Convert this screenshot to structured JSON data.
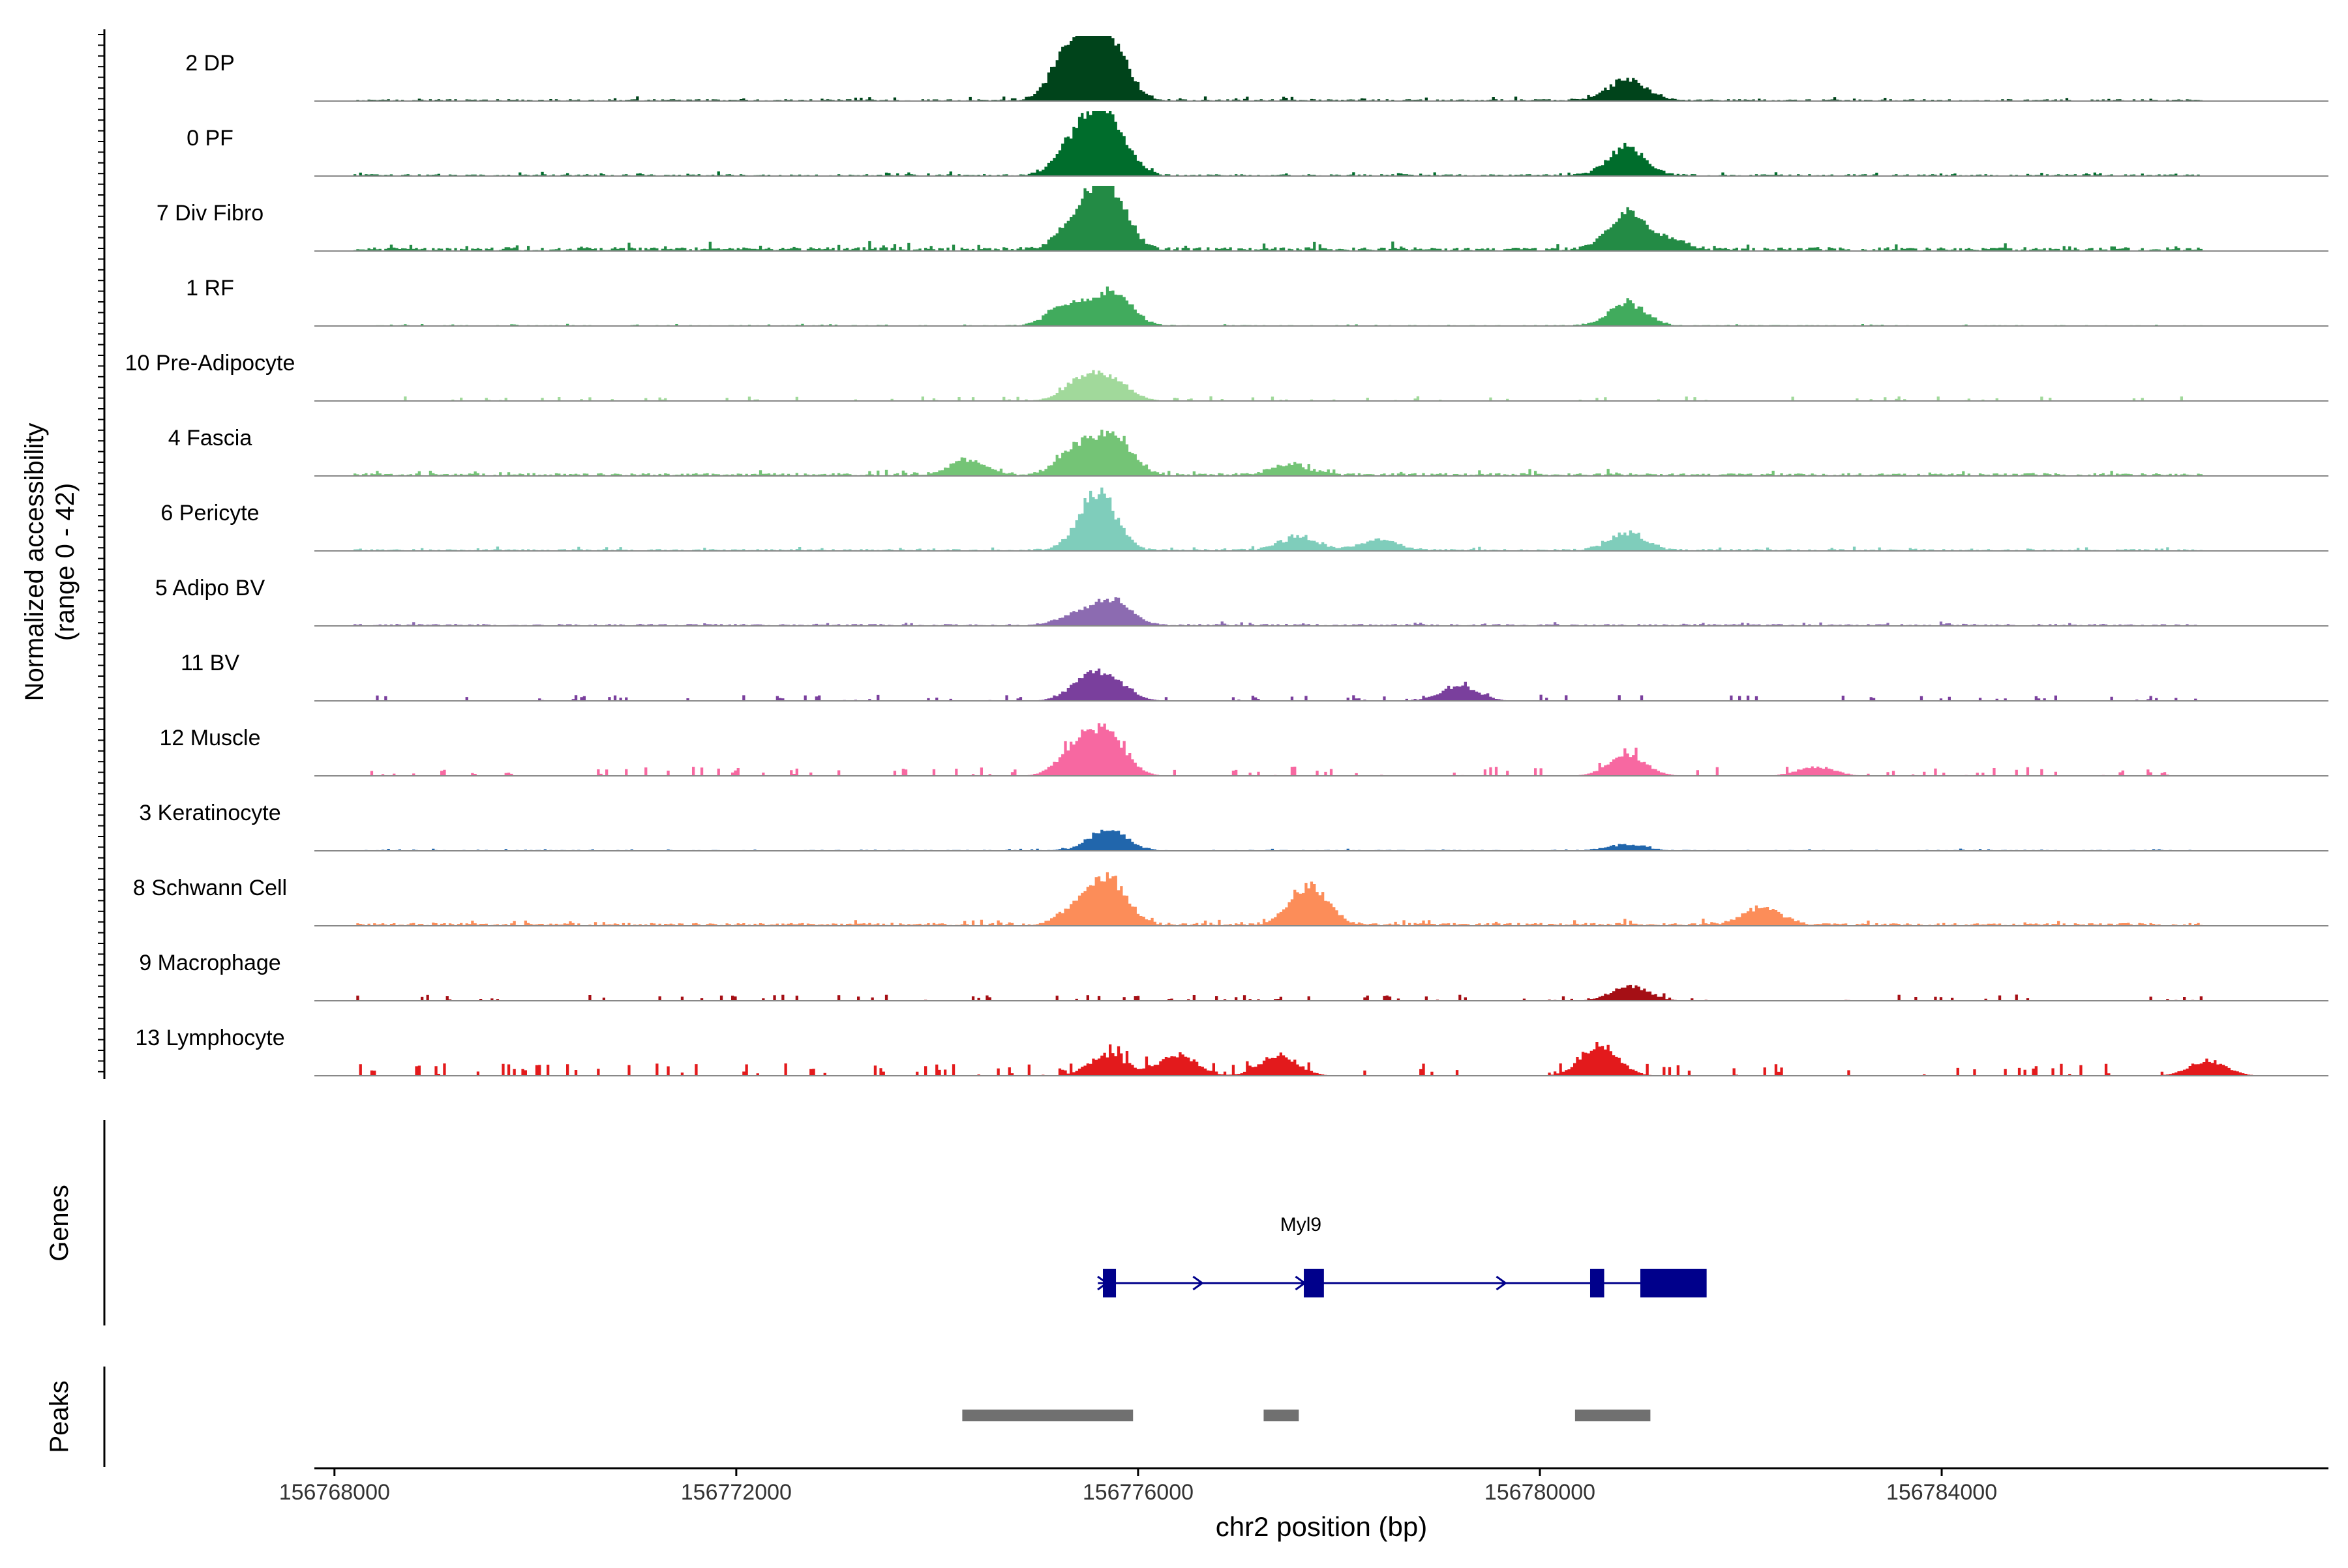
{
  "chart_data": {
    "type": "area",
    "ylabel": "Normalized accessibility",
    "ylabel2": "(range 0 - 42)",
    "xlabel": "chr2 position (bp)",
    "ylim": [
      0,
      42
    ],
    "xlim": [
      156767800,
      156787850
    ],
    "x_ticks": [
      156768000,
      156772000,
      156776000,
      156780000,
      156784000
    ],
    "x_tick_labels": [
      "156768000",
      "156772000",
      "156776000",
      "156780000",
      "156784000"
    ],
    "panels": {
      "genes_label": "Genes",
      "peaks_label": "Peaks"
    },
    "tracks": [
      {
        "name": "2 DP",
        "color": "#00441b",
        "peaks": [
          [
            156775350,
            38
          ],
          [
            156775700,
            40
          ],
          [
            156780870,
            14
          ]
        ],
        "noise": 2,
        "sparse": false
      },
      {
        "name": "0 PF",
        "color": "#006d2c",
        "peaks": [
          [
            156775400,
            24
          ],
          [
            156775700,
            38
          ],
          [
            156780870,
            18
          ]
        ],
        "noise": 2,
        "sparse": false
      },
      {
        "name": "7 Div Fibro",
        "color": "#238b45",
        "peaks": [
          [
            156775400,
            18
          ],
          [
            156775700,
            40
          ],
          [
            156780870,
            25
          ],
          [
            156781300,
            6
          ]
        ],
        "noise": 4,
        "sparse": false
      },
      {
        "name": "1 RF",
        "color": "#41ab5d",
        "peaks": [
          [
            156775300,
            14
          ],
          [
            156775750,
            22
          ],
          [
            156780870,
            15
          ]
        ],
        "noise": 1,
        "sparse": false
      },
      {
        "name": "10 Pre-Adipocyte",
        "color": "#a1d99b",
        "peaks": [
          [
            156775450,
            14
          ],
          [
            156775750,
            12
          ]
        ],
        "noise": 3,
        "sparse": true
      },
      {
        "name": "4 Fascia",
        "color": "#74c476",
        "peaks": [
          [
            156774300,
            10
          ],
          [
            156775400,
            18
          ],
          [
            156775750,
            24
          ],
          [
            156777520,
            7
          ]
        ],
        "noise": 3,
        "sparse": false
      },
      {
        "name": "6 Pericyte",
        "color": "#7fcdbb",
        "peaks": [
          [
            156775600,
            38
          ],
          [
            156777600,
            9
          ],
          [
            156778400,
            7
          ],
          [
            156780870,
            11
          ]
        ],
        "noise": 2,
        "sparse": false
      },
      {
        "name": "5 Adipo BV",
        "color": "#8c6bb1",
        "peaks": [
          [
            156775400,
            7
          ],
          [
            156775750,
            16
          ]
        ],
        "noise": 2,
        "sparse": false
      },
      {
        "name": "11 BV",
        "color": "#7a3f9d",
        "peaks": [
          [
            156775500,
            14
          ],
          [
            156775750,
            10
          ],
          [
            156779200,
            10
          ]
        ],
        "noise": 4,
        "sparse": true
      },
      {
        "name": "12 Muscle",
        "color": "#f768a1",
        "peaks": [
          [
            156775400,
            18
          ],
          [
            156775700,
            26
          ],
          [
            156780870,
            14
          ],
          [
            156782750,
            6
          ]
        ],
        "noise": 6,
        "sparse": true
      },
      {
        "name": "3 Keratinocyte",
        "color": "#2166ac",
        "peaks": [
          [
            156775700,
            14
          ],
          [
            156780870,
            4
          ]
        ],
        "noise": 1,
        "sparse": false
      },
      {
        "name": "8 Schwann Cell",
        "color": "#fc8d59",
        "peaks": [
          [
            156775400,
            10
          ],
          [
            156775700,
            30
          ],
          [
            156777700,
            26
          ],
          [
            156782220,
            12
          ]
        ],
        "noise": 3,
        "sparse": false
      },
      {
        "name": "9 Macrophage",
        "color": "#a50f15",
        "peaks": [
          [
            156780900,
            10
          ]
        ],
        "noise": 4,
        "sparse": true
      },
      {
        "name": "13 Lymphocyte",
        "color": "#e31a1c",
        "peaks": [
          [
            156775700,
            14
          ],
          [
            156776400,
            14
          ],
          [
            156777400,
            14
          ],
          [
            156780600,
            20
          ],
          [
            156786650,
            10
          ]
        ],
        "noise": 8,
        "sparse": true
      }
    ],
    "gene": {
      "name": "Myl9",
      "color": "#00008b",
      "start": 156775600,
      "end": 156781650,
      "exons": [
        [
          156775650,
          156775780
        ],
        [
          156777650,
          156777850
        ],
        [
          156780500,
          156780640
        ],
        [
          156781000,
          156781660
        ]
      ],
      "arrows": [
        156775650,
        156776600,
        156777620,
        156779620
      ]
    },
    "peaks_track": {
      "color": "#707070",
      "regions": [
        [
          156774250,
          156775950
        ],
        [
          156777250,
          156777600
        ],
        [
          156780350,
          156781100
        ]
      ]
    }
  }
}
